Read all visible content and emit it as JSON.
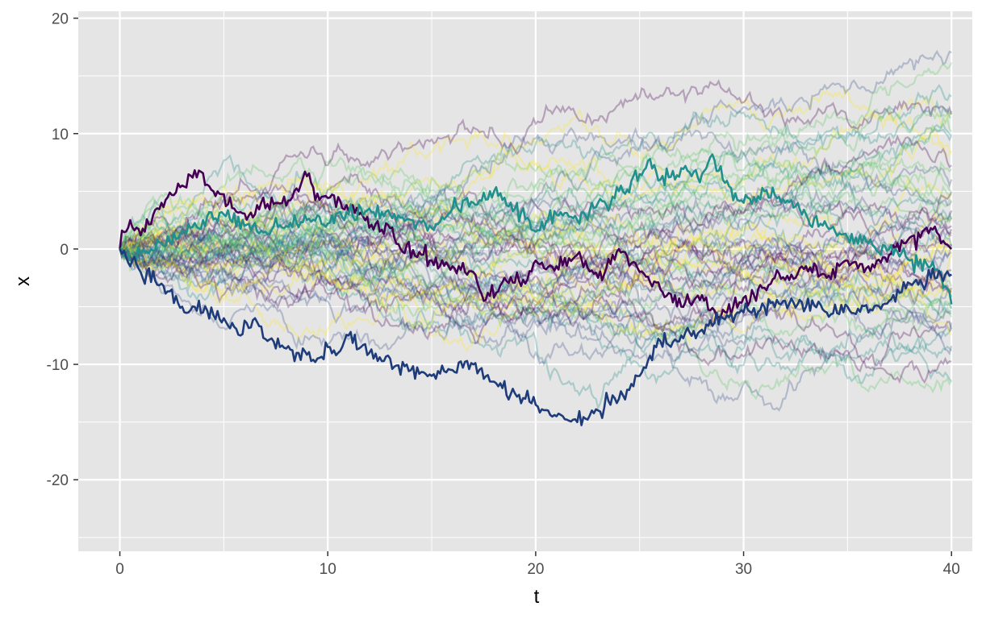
{
  "chart_data": {
    "type": "line",
    "title": "",
    "xlabel": "t",
    "ylabel": "x",
    "xlim": [
      -2,
      41
    ],
    "ylim": [
      -26.2,
      20.6
    ],
    "x_ticks": [
      {
        "value": 0,
        "label": "0"
      },
      {
        "value": 10,
        "label": "10"
      },
      {
        "value": 20,
        "label": "20"
      },
      {
        "value": 30,
        "label": "30"
      },
      {
        "value": 40,
        "label": "40"
      }
    ],
    "y_ticks": [
      {
        "value": 20,
        "label": "20"
      },
      {
        "value": 10,
        "label": "10"
      },
      {
        "value": 0,
        "label": "0"
      },
      {
        "value": -10,
        "label": "-10"
      },
      {
        "value": -20,
        "label": "-20"
      }
    ],
    "grid": true,
    "legend": "none",
    "colors": {
      "panel_bg": "#E5E5E5",
      "grid": "#FFFFFF",
      "palette": [
        "#440154",
        "#3B528B",
        "#21908C",
        "#5DC863",
        "#FDE725"
      ]
    },
    "background_paths": {
      "count": 60,
      "t_start": 0,
      "t_end": 40,
      "x_start": 0,
      "steps": 400,
      "opacity": 0.3
    },
    "highlighted_series": [
      {
        "color": "#440154",
        "points": [
          [
            0,
            0
          ],
          [
            0.5,
            2.5
          ],
          [
            1.2,
            1.5
          ],
          [
            2,
            4
          ],
          [
            3,
            5.5
          ],
          [
            3.8,
            6.8
          ],
          [
            4.5,
            5
          ],
          [
            5.5,
            3.5
          ],
          [
            6.5,
            3
          ],
          [
            7.5,
            4
          ],
          [
            8.3,
            4.5
          ],
          [
            9,
            6.3
          ],
          [
            9.5,
            4.8
          ],
          [
            10.5,
            4.5
          ],
          [
            11.5,
            3
          ],
          [
            12.5,
            1.5
          ],
          [
            13,
            1.8
          ],
          [
            13.5,
            0
          ],
          [
            14.5,
            -0.5
          ],
          [
            15,
            -1
          ],
          [
            16,
            -1.5
          ],
          [
            17,
            -2
          ],
          [
            17.5,
            -4.5
          ],
          [
            18.5,
            -2.5
          ],
          [
            19.5,
            -3
          ],
          [
            20,
            -1
          ],
          [
            21,
            -1.5
          ],
          [
            22,
            -0.5
          ],
          [
            23,
            -2.5
          ],
          [
            24,
            0
          ],
          [
            25,
            -2
          ],
          [
            26,
            -3.5
          ],
          [
            27,
            -5
          ],
          [
            28,
            -4
          ],
          [
            28.7,
            -5.8
          ],
          [
            29.5,
            -5
          ],
          [
            30.5,
            -4
          ],
          [
            31.5,
            -2.5
          ],
          [
            32.5,
            -2.5
          ],
          [
            33,
            -1.5
          ],
          [
            34,
            -2.5
          ],
          [
            35,
            -1
          ],
          [
            36,
            -1.5
          ],
          [
            37,
            -0.5
          ],
          [
            38,
            1
          ],
          [
            38.5,
            1
          ],
          [
            39,
            1.8
          ],
          [
            39.5,
            0.5
          ],
          [
            40,
            0
          ]
        ]
      },
      {
        "color": "#21908C",
        "points": [
          [
            0,
            0
          ],
          [
            0.5,
            -1
          ],
          [
            1,
            -0.5
          ],
          [
            2,
            0.5
          ],
          [
            3,
            1.5
          ],
          [
            4,
            2.5
          ],
          [
            5,
            3
          ],
          [
            6,
            2
          ],
          [
            7,
            1.5
          ],
          [
            8,
            2
          ],
          [
            9,
            2.5
          ],
          [
            10,
            2.2
          ],
          [
            11,
            3
          ],
          [
            12,
            3.5
          ],
          [
            13,
            3
          ],
          [
            14,
            2.5
          ],
          [
            15,
            1.8
          ],
          [
            16,
            3.5
          ],
          [
            17,
            4
          ],
          [
            18,
            5
          ],
          [
            19,
            3.5
          ],
          [
            20,
            1.5
          ],
          [
            21,
            3
          ],
          [
            22,
            2.5
          ],
          [
            23,
            4
          ],
          [
            24,
            5
          ],
          [
            25,
            6.5
          ],
          [
            25.5,
            7.8
          ],
          [
            26,
            6
          ],
          [
            27,
            7
          ],
          [
            28,
            6.5
          ],
          [
            28.5,
            8.2
          ],
          [
            29,
            6
          ],
          [
            30,
            4
          ],
          [
            31,
            5
          ],
          [
            32,
            4
          ],
          [
            33,
            3
          ],
          [
            34,
            2
          ],
          [
            35,
            1
          ],
          [
            36,
            0.5
          ],
          [
            37,
            0
          ],
          [
            38,
            -1
          ],
          [
            39,
            -1.5
          ],
          [
            39.5,
            -2
          ],
          [
            40,
            -4.8
          ]
        ]
      },
      {
        "color": "#1F3C7A",
        "points": [
          [
            0,
            0
          ],
          [
            0.5,
            -1.5
          ],
          [
            1,
            -2
          ],
          [
            2,
            -3
          ],
          [
            3,
            -5
          ],
          [
            4,
            -5.5
          ],
          [
            5,
            -6
          ],
          [
            5.8,
            -7.5
          ],
          [
            6.5,
            -6
          ],
          [
            7,
            -7.8
          ],
          [
            7.7,
            -8.5
          ],
          [
            8.5,
            -9
          ],
          [
            9.5,
            -9.5
          ],
          [
            10,
            -8.5
          ],
          [
            10.5,
            -9
          ],
          [
            11,
            -7.5
          ],
          [
            12,
            -9
          ],
          [
            13,
            -9.5
          ],
          [
            14,
            -10.5
          ],
          [
            15,
            -11
          ],
          [
            16,
            -10.5
          ],
          [
            17,
            -10
          ],
          [
            18,
            -11.5
          ],
          [
            19,
            -12.5
          ],
          [
            20,
            -13.5
          ],
          [
            21,
            -14.5
          ],
          [
            22,
            -15
          ],
          [
            23,
            -14
          ],
          [
            24,
            -13
          ],
          [
            25,
            -11
          ],
          [
            26,
            -8
          ],
          [
            27,
            -7.5
          ],
          [
            28,
            -7
          ],
          [
            29,
            -6
          ],
          [
            30,
            -5.5
          ],
          [
            31,
            -5
          ],
          [
            32,
            -4.5
          ],
          [
            33,
            -5
          ],
          [
            34,
            -5.5
          ],
          [
            35,
            -5
          ],
          [
            36,
            -5.5
          ],
          [
            37,
            -4.5
          ],
          [
            38,
            -3
          ],
          [
            39,
            -2.5
          ],
          [
            40,
            -2.2
          ]
        ]
      }
    ]
  }
}
